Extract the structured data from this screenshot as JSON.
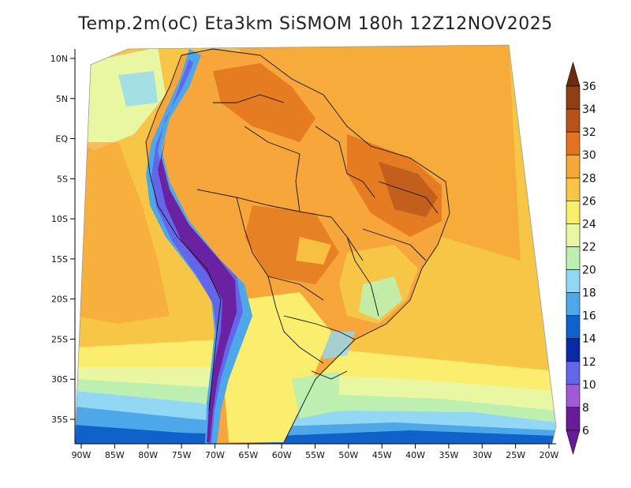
{
  "title": "Temp.2m(oC) Eta3km SiSMOM 180h 12Z12NOV2025",
  "map": {
    "lon_labels": [
      "90W",
      "85W",
      "80W",
      "75W",
      "70W",
      "65W",
      "60W",
      "55W",
      "50W",
      "45W",
      "40W",
      "35W",
      "30W",
      "25W",
      "20W"
    ],
    "lat_labels": [
      "10N",
      "5N",
      "EQ",
      "5S",
      "10S",
      "15S",
      "20S",
      "25S",
      "30S",
      "35S"
    ],
    "lon_range": [
      -90,
      -20
    ],
    "lat_range": [
      -38,
      12
    ]
  },
  "colorbar": {
    "levels": [
      "36",
      "34",
      "32",
      "30",
      "28",
      "26",
      "24",
      "22",
      "20",
      "18",
      "16",
      "14",
      "12",
      "10",
      "8",
      "6"
    ],
    "colors": [
      "#6e2c0e",
      "#8f3f14",
      "#b5531a",
      "#e2741f",
      "#f6a63a",
      "#f8c646",
      "#fbee6f",
      "#eaf7a2",
      "#bcefb0",
      "#92d8f5",
      "#4ea7e9",
      "#0f62c9",
      "#0a2aa5",
      "#6366e8",
      "#a05ad6",
      "#6a1b9a"
    ]
  }
}
